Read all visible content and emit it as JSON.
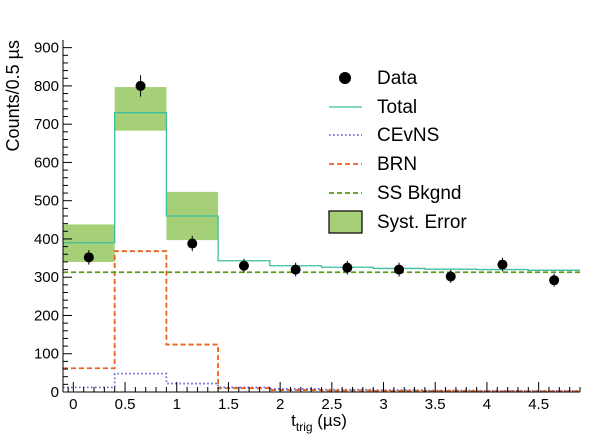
{
  "chart_data": {
    "type": "histogram",
    "xlabel": {
      "main": "t",
      "sub": "trig",
      "unit": " (µs)"
    },
    "ylabel": "Counts/0.5 µs",
    "xlim": [
      -0.1,
      4.9
    ],
    "ylim": [
      0,
      920
    ],
    "xticks": [
      0,
      0.5,
      1,
      1.5,
      2,
      2.5,
      3,
      3.5,
      4,
      4.5
    ],
    "xtick_labels": [
      "0",
      "0.5",
      "1",
      "1.5",
      "2",
      "2.5",
      "3",
      "3.5",
      "4",
      "4.5"
    ],
    "yticks": [
      0,
      100,
      200,
      300,
      400,
      500,
      600,
      700,
      800,
      900
    ],
    "ytick_labels": [
      "0",
      "100",
      "200",
      "300",
      "400",
      "500",
      "600",
      "700",
      "800",
      "900"
    ],
    "bin_edges": [
      -0.1,
      0.4,
      0.9,
      1.4,
      1.9,
      2.4,
      2.9,
      3.4,
      3.9,
      4.4,
      4.9
    ],
    "data": {
      "name": "Data",
      "x": [
        0.15,
        0.65,
        1.15,
        1.65,
        2.15,
        2.65,
        3.15,
        3.65,
        4.15,
        4.65
      ],
      "y": [
        352,
        800,
        388,
        330,
        320,
        325,
        320,
        302,
        333,
        292
      ],
      "err": [
        19,
        28,
        20,
        18,
        18,
        18,
        18,
        17,
        18,
        17
      ]
    },
    "series": [
      {
        "name": "Total",
        "style": "solid",
        "color": "#3dbe9e",
        "values": [
          390,
          730,
          460,
          343,
          330,
          326,
          323,
          321,
          320,
          318
        ]
      },
      {
        "name": "CEvNS",
        "style": "dotted",
        "color": "#6a6ad8",
        "values": [
          12,
          48,
          22,
          12,
          8,
          6,
          5,
          4,
          3,
          3
        ]
      },
      {
        "name": "BRN",
        "style": "dashed",
        "color": "#e8641c",
        "values": [
          62,
          368,
          124,
          10,
          5,
          4,
          3,
          3,
          2,
          2
        ]
      },
      {
        "name": "SS Bkgnd",
        "style": "dashed",
        "color": "#5a9a10",
        "values": [
          313,
          313,
          313,
          313,
          313,
          313,
          313,
          313,
          313,
          313
        ]
      }
    ],
    "syst_error": {
      "name": "Syst. Error",
      "color": "#a6d078",
      "border": "#5a9a10",
      "bands": [
        {
          "x0": -0.1,
          "x1": 0.4,
          "low": 340,
          "high": 438
        },
        {
          "x0": 0.4,
          "x1": 0.9,
          "low": 683,
          "high": 797
        },
        {
          "x0": 0.9,
          "x1": 1.4,
          "low": 397,
          "high": 523
        }
      ]
    },
    "legend": {
      "placement": "top-right",
      "entries": [
        "Data",
        "Total",
        "CEvNS",
        "BRN",
        "SS Bkgnd",
        "Syst. Error"
      ]
    }
  }
}
